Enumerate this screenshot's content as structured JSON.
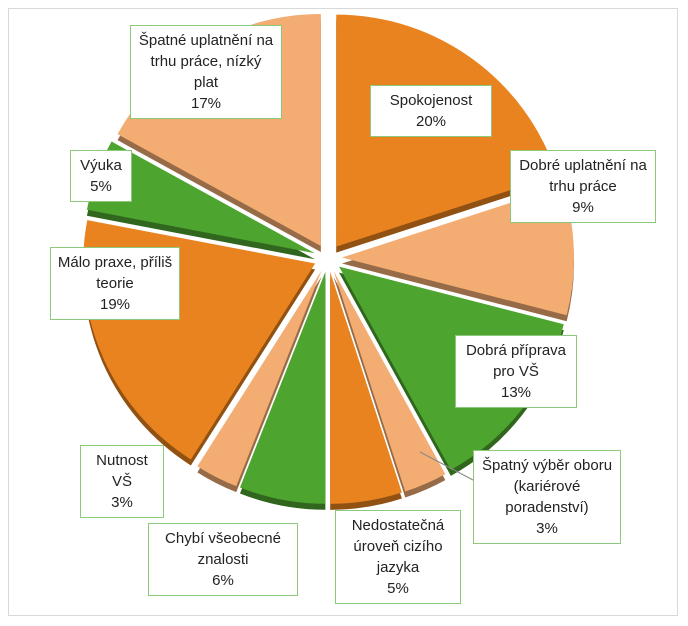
{
  "chart_data": {
    "type": "pie",
    "categories": [
      "Spokojenost",
      "Dobré uplatnění na trhu práce",
      "Dobrá příprava pro VŠ",
      "Špatný výběr oboru (kariérové poradenství)",
      "Nedostatečná úroveň cizího jazyka",
      "Chybí všeobecné znalosti",
      "Nutnost VŠ",
      "Málo praxe, příliš teorie",
      "Výuka",
      "Špatné uplatnění na trhu práce, nízký plat"
    ],
    "values": [
      20,
      9,
      13,
      3,
      5,
      6,
      3,
      19,
      5,
      17
    ],
    "value_labels": [
      "20%",
      "9%",
      "13%",
      "3%",
      "5%",
      "6%",
      "3%",
      "19%",
      "5%",
      "17%"
    ],
    "colors": [
      "#e8831f",
      "#f3ad73",
      "#4da42e",
      "#f3ad73",
      "#e8831f",
      "#4da42e",
      "#f3ad73",
      "#e8831f",
      "#4da42e",
      "#f3ad73"
    ]
  }
}
